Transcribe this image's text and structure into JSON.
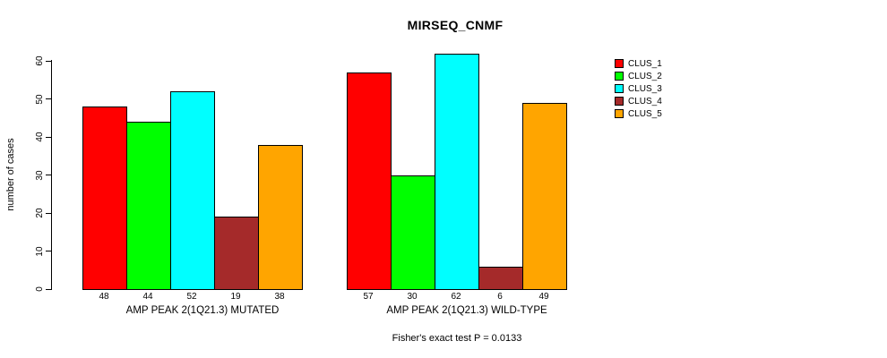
{
  "chart_data": {
    "type": "bar",
    "title": "MIRSEQ_CNMF",
    "ylabel": "number of cases",
    "xlabel": "",
    "ylim": [
      0,
      60
    ],
    "yticks": [
      0,
      10,
      20,
      30,
      40,
      50,
      60
    ],
    "grid": false,
    "legend_position": "top-right",
    "bar_value_labels_shown": true,
    "categories": [
      "AMP PEAK 2(1Q21.3) MUTATED",
      "AMP PEAK 2(1Q21.3) WILD-TYPE"
    ],
    "series": [
      {
        "name": "CLUS_1",
        "color": "#FF0000",
        "values": [
          48,
          57
        ]
      },
      {
        "name": "CLUS_2",
        "color": "#00FF00",
        "values": [
          44,
          30
        ]
      },
      {
        "name": "CLUS_3",
        "color": "#00FFFF",
        "values": [
          52,
          62
        ]
      },
      {
        "name": "CLUS_4",
        "color": "#A52A2A",
        "values": [
          19,
          6
        ]
      },
      {
        "name": "CLUS_5",
        "color": "#FFA500",
        "values": [
          38,
          49
        ]
      }
    ],
    "footnote": "Fisher's exact test P = 0.0133"
  },
  "colors": {
    "background": "#FFFFFF",
    "axis": "#000000",
    "text": "#000000"
  }
}
